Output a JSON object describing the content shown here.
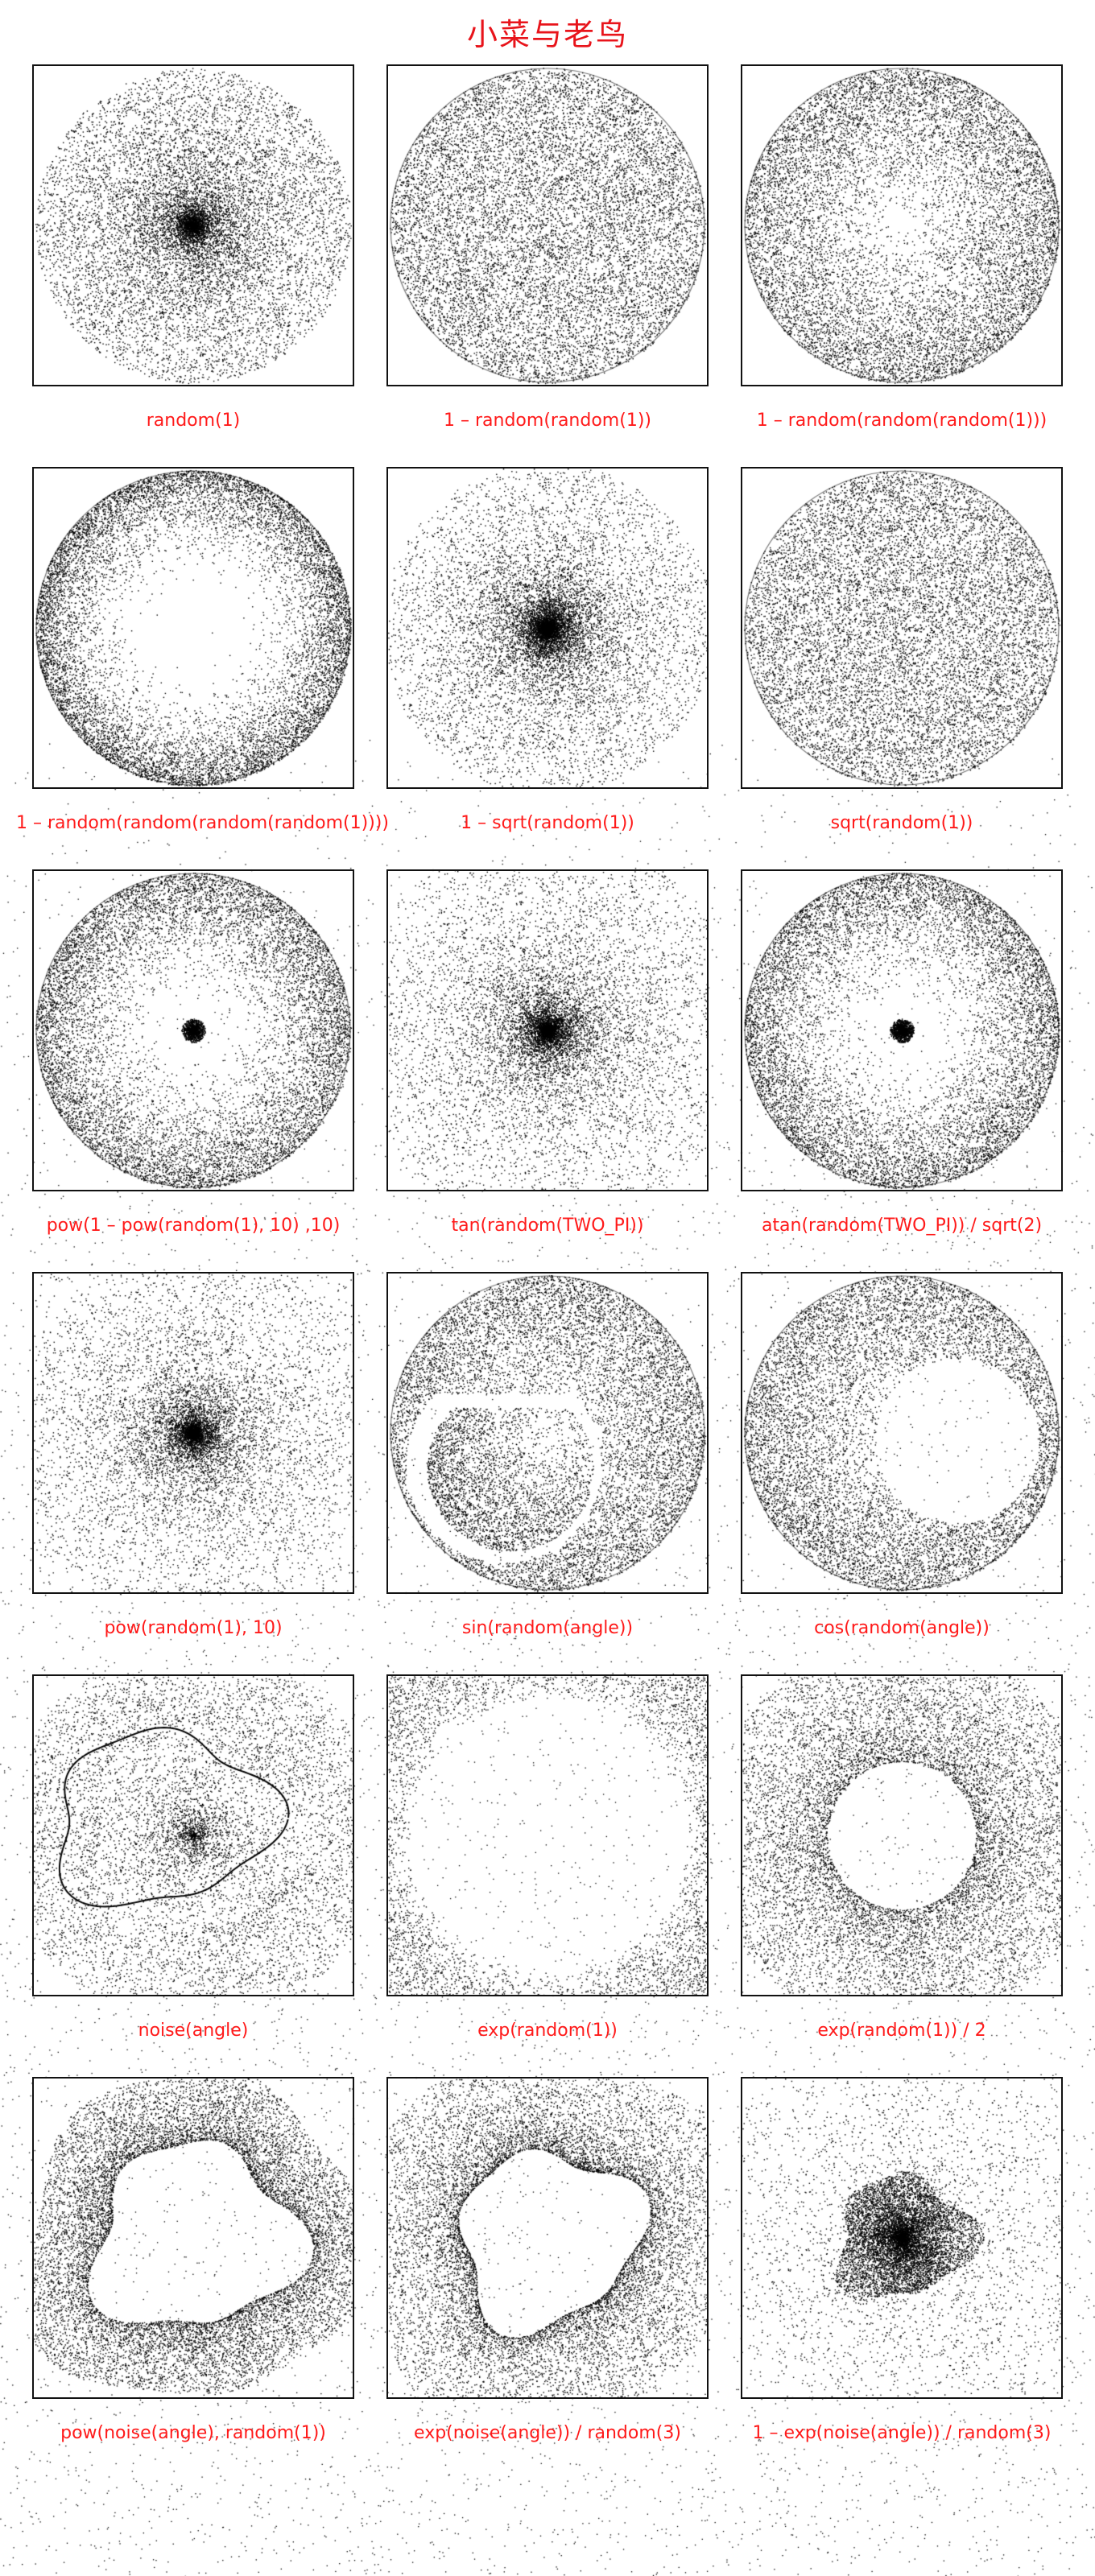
{
  "page": {
    "title": "小菜与老鸟",
    "accent_color": "#e8141b",
    "border_color": "#111111",
    "dot_color": "#000000"
  },
  "panels": [
    {
      "id": "p1",
      "caption": "random(1)",
      "mode": "center_dense"
    },
    {
      "id": "p2",
      "caption": "1 – random(random(1))",
      "mode": "uniform_disk"
    },
    {
      "id": "p3",
      "caption": "1 – random(random(random(1)))",
      "mode": "edge_ring"
    },
    {
      "id": "p4",
      "caption": "1 – random(random(random(random(1))))",
      "mode": "edge_ring_strong"
    },
    {
      "id": "p5",
      "caption": "1 – sqrt(random(1))",
      "mode": "center_fuzzy"
    },
    {
      "id": "p6",
      "caption": "sqrt(random(1))",
      "mode": "uniform_disk"
    },
    {
      "id": "p7",
      "caption": "pow(1 – pow(random(1), 10) ,10)",
      "mode": "edge_ring_center_dot"
    },
    {
      "id": "p8",
      "caption": "tan(random(TWO_PI))",
      "mode": "center_fuzzy_small"
    },
    {
      "id": "p9",
      "caption": "atan(random(TWO_PI)) / sqrt(2)",
      "mode": "edge_ring_center_dot"
    },
    {
      "id": "p10",
      "caption": "pow(random(1), 10)",
      "mode": "center_tight"
    },
    {
      "id": "p11",
      "caption": "sin(random(angle))",
      "mode": "yin_sin"
    },
    {
      "id": "p12",
      "caption": "cos(random(angle))",
      "mode": "yin_cos"
    },
    {
      "id": "p13",
      "caption": "noise(angle)",
      "mode": "noise_outline"
    },
    {
      "id": "p14",
      "caption": "exp(random(1))",
      "mode": "hollow_big"
    },
    {
      "id": "p15",
      "caption": "exp(random(1)) / 2",
      "mode": "hollow_small"
    },
    {
      "id": "p16",
      "caption": "pow(noise(angle), random(1))",
      "mode": "noise_hollow_ring"
    },
    {
      "id": "p17",
      "caption": "exp(noise(angle)) / random(3)",
      "mode": "noise_hollow_sparse"
    },
    {
      "id": "p18",
      "caption": "1 – exp(noise(angle)) / random(3)",
      "mode": "noise_center_blob"
    }
  ]
}
